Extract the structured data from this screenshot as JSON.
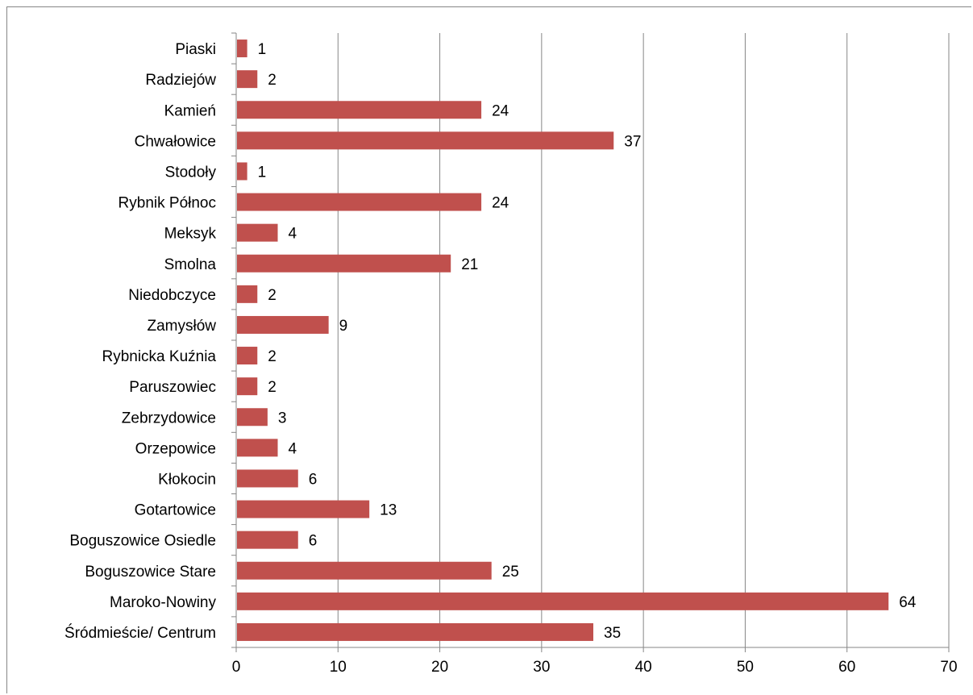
{
  "chart_data": {
    "type": "bar",
    "orientation": "horizontal",
    "categories": [
      "Piaski",
      "Radziejów",
      "Kamień",
      "Chwałowice",
      "Stodoły",
      "Rybnik Północ",
      "Meksyk",
      "Smolna",
      "Niedobczyce",
      "Zamysłów",
      "Rybnicka Kuźnia",
      "Paruszowiec",
      "Zebrzydowice",
      "Orzepowice",
      "Kłokocin",
      "Gotartowice",
      "Boguszowice Osiedle",
      "Boguszowice Stare",
      "Maroko-Nowiny",
      "Śródmieście/ Centrum"
    ],
    "values": [
      1,
      2,
      24,
      37,
      1,
      24,
      4,
      21,
      2,
      9,
      2,
      2,
      3,
      4,
      6,
      13,
      6,
      25,
      64,
      35
    ],
    "xlim": [
      0,
      70
    ],
    "xticks": [
      "0",
      "10",
      "20",
      "30",
      "40",
      "50",
      "60",
      "70"
    ],
    "title": "",
    "xlabel": "",
    "ylabel": "",
    "grid": "vertical",
    "data_labels": true,
    "bar_color": "#C0504D",
    "gridline_color": "#868686"
  }
}
